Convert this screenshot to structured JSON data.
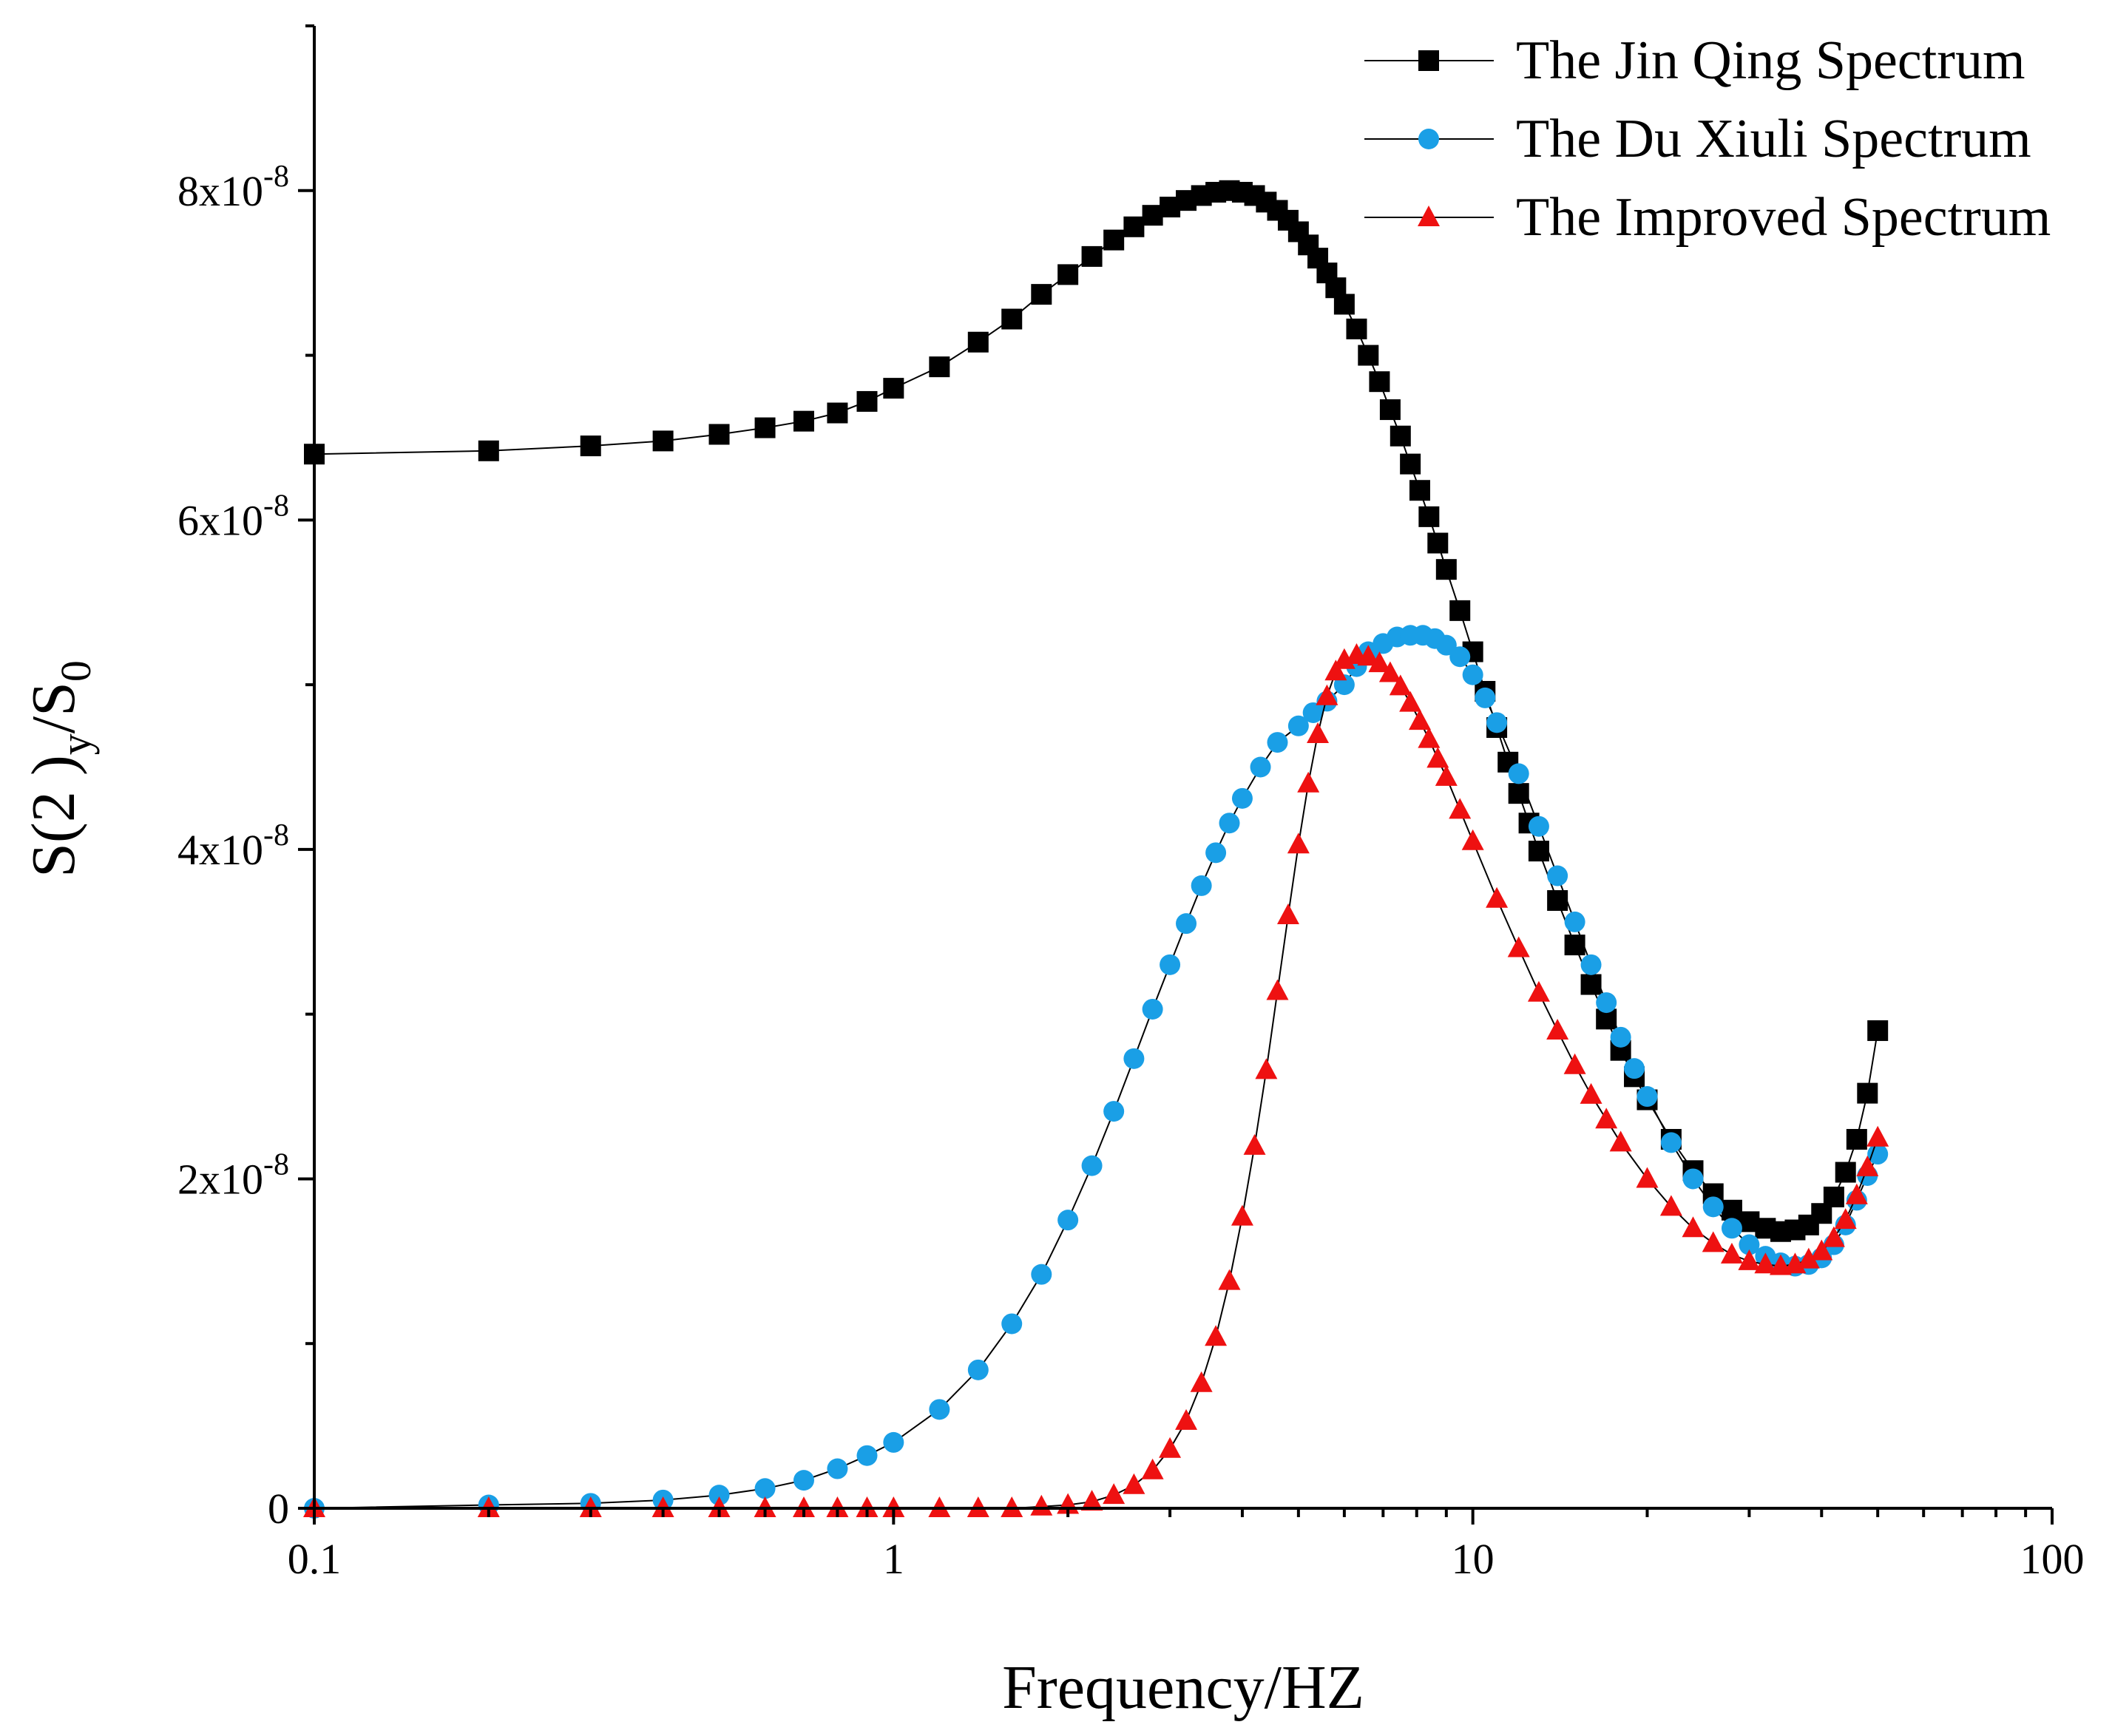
{
  "chart_data": {
    "type": "line",
    "xlabel": "Frequency/HZ",
    "ylabel": {
      "base": "S(2 )",
      "sub1": "y",
      "mid": "/S",
      "sub2": "0"
    },
    "x_scale": "log",
    "xlim": [
      0.1,
      100
    ],
    "ylim": [
      0,
      9e-08
    ],
    "x_ticks": [
      {
        "value": 0.1,
        "label": "0.1"
      },
      {
        "value": 1,
        "label": "1"
      },
      {
        "value": 10,
        "label": "10"
      },
      {
        "value": 100,
        "label": "100"
      }
    ],
    "y_ticks": [
      {
        "value": 0,
        "mantissa": "0",
        "exp": ""
      },
      {
        "value": 2e-08,
        "mantissa": "2x10",
        "exp": "-8"
      },
      {
        "value": 4e-08,
        "mantissa": "4x10",
        "exp": "-8"
      },
      {
        "value": 6e-08,
        "mantissa": "6x10",
        "exp": "-8"
      },
      {
        "value": 8e-08,
        "mantissa": "8x10",
        "exp": "-8"
      }
    ],
    "y_minor_ticks": [
      1e-08,
      3e-08,
      5e-08,
      7e-08,
      9e-08
    ],
    "legend_position": "top-right",
    "grid": false,
    "series": [
      {
        "name": "The Jin Qing Spectrum",
        "marker": "square",
        "color": "#000000",
        "points": [
          [
            0.1,
            6.4e-08
          ],
          [
            0.2,
            6.42e-08
          ],
          [
            0.3,
            6.45e-08
          ],
          [
            0.4,
            6.48e-08
          ],
          [
            0.5,
            6.52e-08
          ],
          [
            0.6,
            6.56e-08
          ],
          [
            0.7,
            6.6e-08
          ],
          [
            0.8,
            6.65e-08
          ],
          [
            0.9,
            6.72e-08
          ],
          [
            1.0,
            6.8e-08
          ],
          [
            1.2,
            6.93e-08
          ],
          [
            1.4,
            7.08e-08
          ],
          [
            1.6,
            7.22e-08
          ],
          [
            1.8,
            7.37e-08
          ],
          [
            2.0,
            7.49e-08
          ],
          [
            2.2,
            7.6e-08
          ],
          [
            2.4,
            7.7e-08
          ],
          [
            2.6,
            7.78e-08
          ],
          [
            2.8,
            7.85e-08
          ],
          [
            3.0,
            7.9e-08
          ],
          [
            3.2,
            7.94e-08
          ],
          [
            3.4,
            7.97e-08
          ],
          [
            3.6,
            7.99e-08
          ],
          [
            3.8,
            8e-08
          ],
          [
            4.0,
            7.99e-08
          ],
          [
            4.2,
            7.97e-08
          ],
          [
            4.4,
            7.93e-08
          ],
          [
            4.6,
            7.88e-08
          ],
          [
            4.8,
            7.82e-08
          ],
          [
            5.0,
            7.75e-08
          ],
          [
            5.2,
            7.67e-08
          ],
          [
            5.4,
            7.59e-08
          ],
          [
            5.6,
            7.5e-08
          ],
          [
            5.8,
            7.41e-08
          ],
          [
            6.0,
            7.31e-08
          ],
          [
            6.3,
            7.16e-08
          ],
          [
            6.6,
            7e-08
          ],
          [
            6.9,
            6.84e-08
          ],
          [
            7.2,
            6.67e-08
          ],
          [
            7.5,
            6.51e-08
          ],
          [
            7.8,
            6.34e-08
          ],
          [
            8.1,
            6.18e-08
          ],
          [
            8.4,
            6.02e-08
          ],
          [
            8.7,
            5.86e-08
          ],
          [
            9.0,
            5.7e-08
          ],
          [
            9.5,
            5.45e-08
          ],
          [
            10.0,
            5.2e-08
          ],
          [
            10.5,
            4.96e-08
          ],
          [
            11.0,
            4.74e-08
          ],
          [
            11.5,
            4.53e-08
          ],
          [
            12.0,
            4.34e-08
          ],
          [
            12.5,
            4.16e-08
          ],
          [
            13.0,
            3.99e-08
          ],
          [
            14.0,
            3.69e-08
          ],
          [
            15.0,
            3.42e-08
          ],
          [
            16.0,
            3.18e-08
          ],
          [
            17.0,
            2.97e-08
          ],
          [
            18.0,
            2.78e-08
          ],
          [
            19.0,
            2.62e-08
          ],
          [
            20.0,
            2.48e-08
          ],
          [
            22.0,
            2.24e-08
          ],
          [
            24.0,
            2.05e-08
          ],
          [
            26.0,
            1.91e-08
          ],
          [
            28.0,
            1.81e-08
          ],
          [
            30.0,
            1.74e-08
          ],
          [
            32.0,
            1.7e-08
          ],
          [
            34.0,
            1.68e-08
          ],
          [
            36.0,
            1.69e-08
          ],
          [
            38.0,
            1.72e-08
          ],
          [
            40.0,
            1.79e-08
          ],
          [
            42.0,
            1.89e-08
          ],
          [
            44.0,
            2.04e-08
          ],
          [
            46.0,
            2.24e-08
          ],
          [
            48.0,
            2.52e-08
          ],
          [
            50.0,
            2.9e-08
          ]
        ]
      },
      {
        "name": "The Du Xiuli Spectrum",
        "marker": "circle",
        "color": "#1a9fe6",
        "points": [
          [
            0.1,
            0.0
          ],
          [
            0.2,
            2e-10
          ],
          [
            0.3,
            3e-10
          ],
          [
            0.4,
            5e-10
          ],
          [
            0.5,
            8e-10
          ],
          [
            0.6,
            1.2e-09
          ],
          [
            0.7,
            1.7e-09
          ],
          [
            0.8,
            2.4e-09
          ],
          [
            0.9,
            3.2e-09
          ],
          [
            1.0,
            4e-09
          ],
          [
            1.2,
            6e-09
          ],
          [
            1.4,
            8.4e-09
          ],
          [
            1.6,
            1.12e-08
          ],
          [
            1.8,
            1.42e-08
          ],
          [
            2.0,
            1.75e-08
          ],
          [
            2.2,
            2.08e-08
          ],
          [
            2.4,
            2.41e-08
          ],
          [
            2.6,
            2.73e-08
          ],
          [
            2.8,
            3.03e-08
          ],
          [
            3.0,
            3.3e-08
          ],
          [
            3.2,
            3.55e-08
          ],
          [
            3.4,
            3.78e-08
          ],
          [
            3.6,
            3.98e-08
          ],
          [
            3.8,
            4.16e-08
          ],
          [
            4.0,
            4.31e-08
          ],
          [
            4.3,
            4.5e-08
          ],
          [
            4.6,
            4.65e-08
          ],
          [
            5.0,
            4.75e-08
          ],
          [
            5.3,
            4.83e-08
          ],
          [
            5.6,
            4.9e-08
          ],
          [
            6.0,
            5e-08
          ],
          [
            6.3,
            5.11e-08
          ],
          [
            6.6,
            5.2e-08
          ],
          [
            7.0,
            5.25e-08
          ],
          [
            7.4,
            5.29e-08
          ],
          [
            7.8,
            5.3e-08
          ],
          [
            8.2,
            5.3e-08
          ],
          [
            8.6,
            5.28e-08
          ],
          [
            9.0,
            5.24e-08
          ],
          [
            9.5,
            5.17e-08
          ],
          [
            10.0,
            5.06e-08
          ],
          [
            10.5,
            4.92e-08
          ],
          [
            11.0,
            4.77e-08
          ],
          [
            12.0,
            4.46e-08
          ],
          [
            13.0,
            4.14e-08
          ],
          [
            14.0,
            3.84e-08
          ],
          [
            15.0,
            3.56e-08
          ],
          [
            16.0,
            3.3e-08
          ],
          [
            17.0,
            3.07e-08
          ],
          [
            18.0,
            2.86e-08
          ],
          [
            19.0,
            2.67e-08
          ],
          [
            20.0,
            2.5e-08
          ],
          [
            22.0,
            2.22e-08
          ],
          [
            24.0,
            2e-08
          ],
          [
            26.0,
            1.83e-08
          ],
          [
            28.0,
            1.7e-08
          ],
          [
            30.0,
            1.6e-08
          ],
          [
            32.0,
            1.53e-08
          ],
          [
            34.0,
            1.49e-08
          ],
          [
            36.0,
            1.47e-08
          ],
          [
            38.0,
            1.48e-08
          ],
          [
            40.0,
            1.52e-08
          ],
          [
            42.0,
            1.6e-08
          ],
          [
            44.0,
            1.72e-08
          ],
          [
            46.0,
            1.87e-08
          ],
          [
            48.0,
            2.02e-08
          ],
          [
            50.0,
            2.15e-08
          ]
        ]
      },
      {
        "name": "The Improved Spectrum",
        "marker": "triangle",
        "color": "#ee1111",
        "points": [
          [
            0.1,
            0.0
          ],
          [
            0.2,
            0.0
          ],
          [
            0.3,
            0.0
          ],
          [
            0.4,
            0.0
          ],
          [
            0.5,
            0.0
          ],
          [
            0.6,
            0.0
          ],
          [
            0.7,
            0.0
          ],
          [
            0.8,
            0.0
          ],
          [
            0.9,
            0.0
          ],
          [
            1.0,
            0.0
          ],
          [
            1.2,
            0.0
          ],
          [
            1.4,
            0.0
          ],
          [
            1.6,
            0.0
          ],
          [
            1.8,
            1e-10
          ],
          [
            2.0,
            2e-10
          ],
          [
            2.2,
            4e-10
          ],
          [
            2.4,
            8e-10
          ],
          [
            2.6,
            1.4e-09
          ],
          [
            2.8,
            2.3e-09
          ],
          [
            3.0,
            3.6e-09
          ],
          [
            3.2,
            5.3e-09
          ],
          [
            3.4,
            7.6e-09
          ],
          [
            3.6,
            1.04e-08
          ],
          [
            3.8,
            1.38e-08
          ],
          [
            4.0,
            1.77e-08
          ],
          [
            4.2,
            2.2e-08
          ],
          [
            4.4,
            2.66e-08
          ],
          [
            4.6,
            3.14e-08
          ],
          [
            4.8,
            3.6e-08
          ],
          [
            5.0,
            4.03e-08
          ],
          [
            5.2,
            4.4e-08
          ],
          [
            5.4,
            4.7e-08
          ],
          [
            5.6,
            4.93e-08
          ],
          [
            5.8,
            5.08e-08
          ],
          [
            6.0,
            5.15e-08
          ],
          [
            6.3,
            5.18e-08
          ],
          [
            6.6,
            5.17e-08
          ],
          [
            6.9,
            5.13e-08
          ],
          [
            7.2,
            5.07e-08
          ],
          [
            7.5,
            4.99e-08
          ],
          [
            7.8,
            4.89e-08
          ],
          [
            8.1,
            4.78e-08
          ],
          [
            8.4,
            4.67e-08
          ],
          [
            8.7,
            4.55e-08
          ],
          [
            9.0,
            4.44e-08
          ],
          [
            9.5,
            4.24e-08
          ],
          [
            10.0,
            4.05e-08
          ],
          [
            11.0,
            3.7e-08
          ],
          [
            12.0,
            3.4e-08
          ],
          [
            13.0,
            3.13e-08
          ],
          [
            14.0,
            2.9e-08
          ],
          [
            15.0,
            2.69e-08
          ],
          [
            16.0,
            2.51e-08
          ],
          [
            17.0,
            2.36e-08
          ],
          [
            18.0,
            2.22e-08
          ],
          [
            20.0,
            2e-08
          ],
          [
            22.0,
            1.83e-08
          ],
          [
            24.0,
            1.7e-08
          ],
          [
            26.0,
            1.61e-08
          ],
          [
            28.0,
            1.54e-08
          ],
          [
            30.0,
            1.5e-08
          ],
          [
            32.0,
            1.48e-08
          ],
          [
            34.0,
            1.47e-08
          ],
          [
            36.0,
            1.48e-08
          ],
          [
            38.0,
            1.51e-08
          ],
          [
            40.0,
            1.56e-08
          ],
          [
            42.0,
            1.64e-08
          ],
          [
            44.0,
            1.75e-08
          ],
          [
            46.0,
            1.9e-08
          ],
          [
            48.0,
            2.07e-08
          ],
          [
            50.0,
            2.25e-08
          ]
        ]
      }
    ]
  }
}
